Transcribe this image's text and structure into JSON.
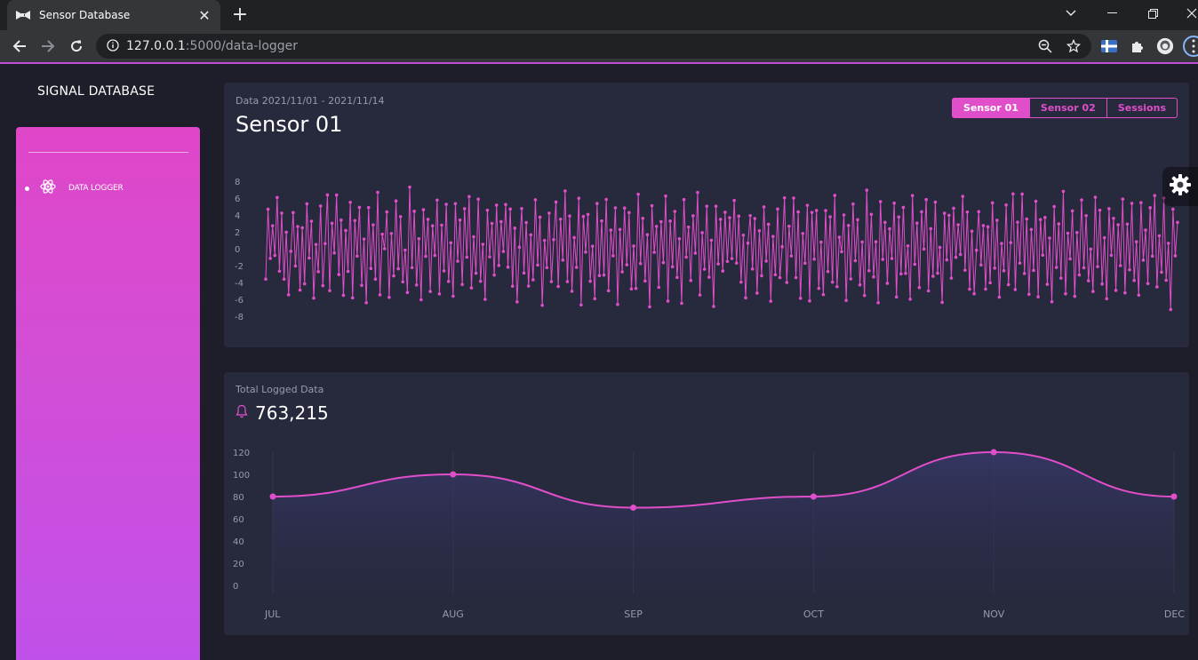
{
  "browser": {
    "tab_title": "Sensor Database",
    "url_host": "127.0.0.1",
    "url_rest": ":5000/data-logger"
  },
  "app": {
    "brand": "SIGNAL DATABASE",
    "sidebar": {
      "items": [
        {
          "label": "DATA LOGGER",
          "icon": "atom-icon",
          "active": true
        }
      ]
    },
    "colors": {
      "accent": "#e14eca",
      "card": "#27293d",
      "background": "#1e1e2b"
    }
  },
  "sensor_card": {
    "subtitle": "Data 2021/11/01 - 2021/11/14",
    "title": "Sensor 01",
    "buttons": [
      "Sensor 01",
      "Sensor 02",
      "Sessions"
    ],
    "active_button": "Sensor 01"
  },
  "total_card": {
    "subtitle": "Total Logged Data",
    "value": "763,215"
  },
  "chart_data": [
    {
      "type": "line",
      "series": [
        {
          "values": [
            -3.0,
            4.8,
            -1.5,
            3.2,
            -0.8,
            5.6,
            -2.3,
            4.1,
            -4.2,
            2.2,
            -5.7,
            0.3,
            4.4,
            -2.4,
            3.1,
            -4.9,
            2.0,
            -3.8,
            5.2,
            -1.7,
            3.5,
            -6.1,
            1.1,
            -2.6,
            4.7,
            -3.9,
            0.6,
            5.9,
            -4.6,
            2.9,
            -1.1,
            6.6,
            -3.3,
            4.0,
            -5.4,
            1.8,
            -2.2,
            5.5,
            -6.3,
            3.7,
            -1.0,
            4.3,
            -4.1,
            0.9,
            -5.8,
            5.0,
            -2.7,
            3.3,
            -3.6,
            6.2,
            -5.1,
            1.6,
            -0.6,
            4.6,
            -6.0,
            2.4,
            -3.1,
            5.3,
            -1.9,
            3.8,
            -4.4,
            0.2,
            -5.3,
            6.7,
            -2.0,
            4.2,
            -3.7,
            1.3,
            -6.4,
            5.1,
            -0.9,
            3.0,
            -4.7,
            2.6,
            -1.4,
            6.0,
            -5.6,
            3.4,
            -2.5,
            4.9,
            -3.4,
            0.7,
            -6.1,
            5.7,
            -1.6,
            2.8,
            -4.0,
            4.5,
            -0.4,
            6.3,
            -5.0,
            1.9,
            -2.9,
            5.4,
            -3.5,
            0.4,
            -6.6,
            4.8,
            -1.2,
            3.6
          ],
          "note": ""
        }
      ],
      "ylim": [
        -8,
        8
      ],
      "yticks": [
        8,
        6,
        4,
        2,
        0,
        -2,
        -4,
        -6,
        -8
      ],
      "grid": false
    },
    {
      "type": "area",
      "categories": [
        "JUL",
        "AUG",
        "SEP",
        "OCT",
        "NOV",
        "DEC"
      ],
      "values": [
        80,
        100,
        70,
        80,
        120,
        80
      ],
      "ylim": [
        0,
        120
      ],
      "yticks": [
        120,
        100,
        80,
        60,
        40,
        20,
        0
      ],
      "grid": true
    }
  ]
}
